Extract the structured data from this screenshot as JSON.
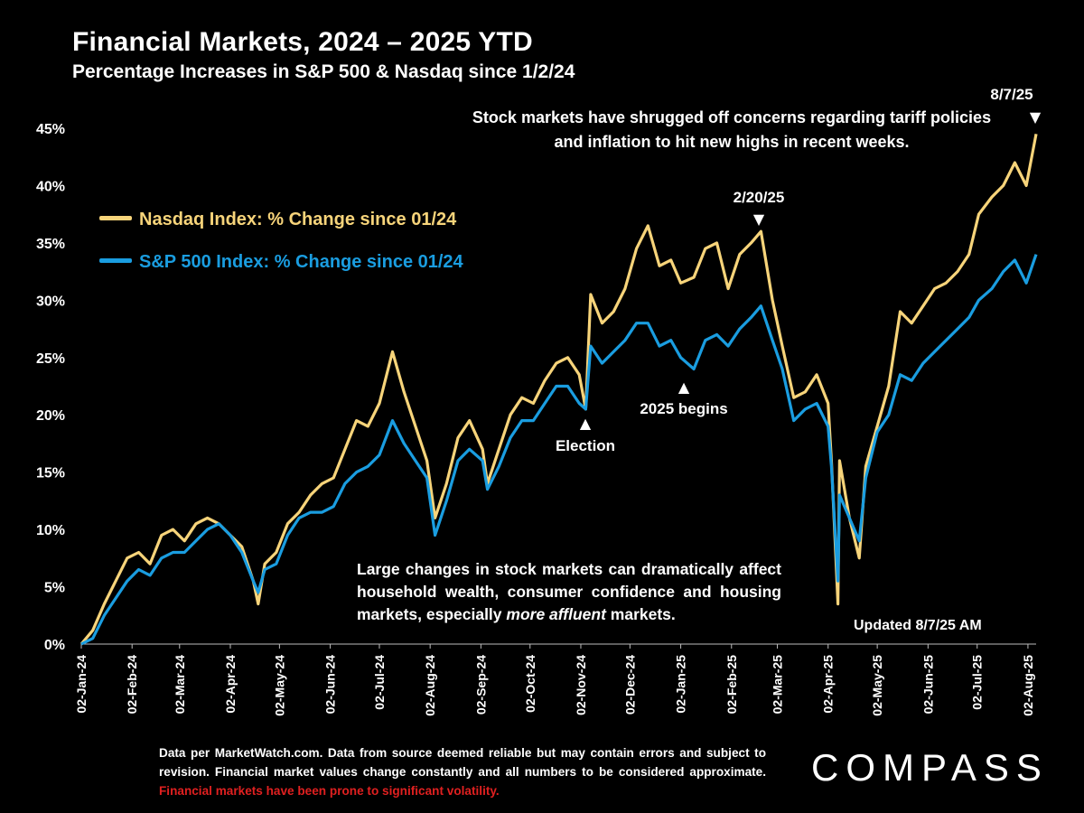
{
  "header": {
    "title": "Financial Markets, 2024 – 2025 YTD",
    "subtitle": "Percentage Increases in S&P 500 & Nasdaq since 1/2/24"
  },
  "legend": [
    {
      "label": "Nasdaq Index: % Change since 01/24",
      "color": "#f7d47a"
    },
    {
      "label": "S&P 500 Index: % Change since 01/24",
      "color": "#1a9de0"
    }
  ],
  "annotations": {
    "top_note": "Stock markets have shrugged off concerns regarding tariff policies and inflation to hit new highs in recent weeks.",
    "mid_note_part1": "Large changes in stock markets can dramatically affect household wealth, consumer confidence and housing markets, especially ",
    "mid_note_emph": "more affluent",
    "mid_note_part2": " markets.",
    "updated": "Updated 8/7/25 AM",
    "markers": [
      {
        "label": "8/7/25",
        "date": "2025-08-07",
        "marker": "▼"
      },
      {
        "label": "2/20/25",
        "date": "2025-02-20",
        "marker": "▼"
      },
      {
        "label": "Election",
        "date": "2024-11-05",
        "marker": "▲"
      },
      {
        "label": "2025 begins",
        "date": "2025-01-02",
        "marker": "▲"
      }
    ]
  },
  "footer": {
    "text": "Data per MarketWatch.com. Data from source deemed reliable but may contain errors and subject to revision. Financial market values change constantly and all numbers to be considered approximate. ",
    "warning": "Financial markets have been prone to significant volatility.",
    "logo": "COMPASS"
  },
  "chart_data": {
    "type": "line",
    "xlabel": "",
    "ylabel": "",
    "ylim": [
      0,
      45
    ],
    "y_ticks": [
      "0%",
      "5%",
      "10%",
      "15%",
      "20%",
      "25%",
      "30%",
      "35%",
      "40%",
      "45%"
    ],
    "x_ticks": [
      "02-Jan-24",
      "02-Feb-24",
      "02-Mar-24",
      "02-Apr-24",
      "02-May-24",
      "02-Jun-24",
      "02-Jul-24",
      "02-Aug-24",
      "02-Sep-24",
      "02-Oct-24",
      "02-Nov-24",
      "02-Dec-24",
      "02-Jan-25",
      "02-Feb-25",
      "02-Mar-25",
      "02-Apr-25",
      "02-May-25",
      "02-Jun-25",
      "02-Jul-25",
      "02-Aug-25"
    ],
    "grid": false,
    "x": [
      "2024-01-02",
      "2024-01-09",
      "2024-01-16",
      "2024-01-23",
      "2024-01-30",
      "2024-02-06",
      "2024-02-13",
      "2024-02-20",
      "2024-02-27",
      "2024-03-05",
      "2024-03-12",
      "2024-03-19",
      "2024-03-26",
      "2024-04-02",
      "2024-04-09",
      "2024-04-16",
      "2024-04-19",
      "2024-04-23",
      "2024-04-30",
      "2024-05-07",
      "2024-05-14",
      "2024-05-21",
      "2024-05-28",
      "2024-06-04",
      "2024-06-11",
      "2024-06-18",
      "2024-06-25",
      "2024-07-02",
      "2024-07-10",
      "2024-07-17",
      "2024-07-24",
      "2024-07-31",
      "2024-08-05",
      "2024-08-12",
      "2024-08-19",
      "2024-08-26",
      "2024-09-03",
      "2024-09-06",
      "2024-09-13",
      "2024-09-20",
      "2024-09-27",
      "2024-10-04",
      "2024-10-11",
      "2024-10-18",
      "2024-10-25",
      "2024-11-01",
      "2024-11-05",
      "2024-11-08",
      "2024-11-15",
      "2024-11-22",
      "2024-11-29",
      "2024-12-06",
      "2024-12-13",
      "2024-12-20",
      "2024-12-27",
      "2025-01-02",
      "2025-01-10",
      "2025-01-17",
      "2025-01-24",
      "2025-01-31",
      "2025-02-07",
      "2025-02-14",
      "2025-02-20",
      "2025-02-27",
      "2025-03-05",
      "2025-03-12",
      "2025-03-19",
      "2025-03-26",
      "2025-04-02",
      "2025-04-04",
      "2025-04-08",
      "2025-04-09",
      "2025-04-15",
      "2025-04-21",
      "2025-04-25",
      "2025-05-02",
      "2025-05-09",
      "2025-05-16",
      "2025-05-23",
      "2025-05-30",
      "2025-06-06",
      "2025-06-13",
      "2025-06-20",
      "2025-06-27",
      "2025-07-03",
      "2025-07-11",
      "2025-07-18",
      "2025-07-25",
      "2025-08-01",
      "2025-08-07"
    ],
    "series": [
      {
        "name": "Nasdaq Index: % Change since 01/24",
        "color": "#f7d47a",
        "values": [
          0,
          1.2,
          3.5,
          5.5,
          7.5,
          8.0,
          7.0,
          9.5,
          10.0,
          9.0,
          10.5,
          11.0,
          10.5,
          9.5,
          8.5,
          5.5,
          3.5,
          7.0,
          8.0,
          10.5,
          11.5,
          13.0,
          14.0,
          14.5,
          17.0,
          19.5,
          19.0,
          21.0,
          25.5,
          22.0,
          19.0,
          16.0,
          11.0,
          14.0,
          18.0,
          19.5,
          17.0,
          14.0,
          17.0,
          20.0,
          21.5,
          21.0,
          23.0,
          24.5,
          25.0,
          23.5,
          20.5,
          30.5,
          28.0,
          29.0,
          31.0,
          34.5,
          36.5,
          33.0,
          33.5,
          31.5,
          32.0,
          34.5,
          35.0,
          31.0,
          34.0,
          35.0,
          36.0,
          30.0,
          26.0,
          21.5,
          22.0,
          23.5,
          21.0,
          16.0,
          3.5,
          16.0,
          11.0,
          7.5,
          15.5,
          19.0,
          22.5,
          29.0,
          28.0,
          29.5,
          31.0,
          31.5,
          32.5,
          34.0,
          37.5,
          39.0,
          40.0,
          42.0,
          40.0,
          44.5
        ]
      },
      {
        "name": "S&P 500 Index: % Change since 01/24",
        "color": "#1a9de0",
        "values": [
          0,
          0.5,
          2.5,
          4.0,
          5.5,
          6.5,
          6.0,
          7.5,
          8.0,
          8.0,
          9.0,
          10.0,
          10.5,
          9.5,
          8.0,
          5.5,
          4.5,
          6.5,
          7.0,
          9.5,
          11.0,
          11.5,
          11.5,
          12.0,
          14.0,
          15.0,
          15.5,
          16.5,
          19.5,
          17.5,
          16.0,
          14.5,
          9.5,
          12.5,
          16.0,
          17.0,
          16.0,
          13.5,
          15.5,
          18.0,
          19.5,
          19.5,
          21.0,
          22.5,
          22.5,
          21.0,
          20.5,
          26.0,
          24.5,
          25.5,
          26.5,
          28.0,
          28.0,
          26.0,
          26.5,
          25.0,
          24.0,
          26.5,
          27.0,
          26.0,
          27.5,
          28.5,
          29.5,
          26.5,
          24.0,
          19.5,
          20.5,
          21.0,
          19.0,
          15.5,
          5.5,
          13.0,
          11.0,
          9.0,
          14.5,
          18.5,
          20.0,
          23.5,
          23.0,
          24.5,
          25.5,
          26.5,
          27.5,
          28.5,
          30.0,
          31.0,
          32.5,
          33.5,
          31.5,
          34.0
        ]
      }
    ]
  }
}
